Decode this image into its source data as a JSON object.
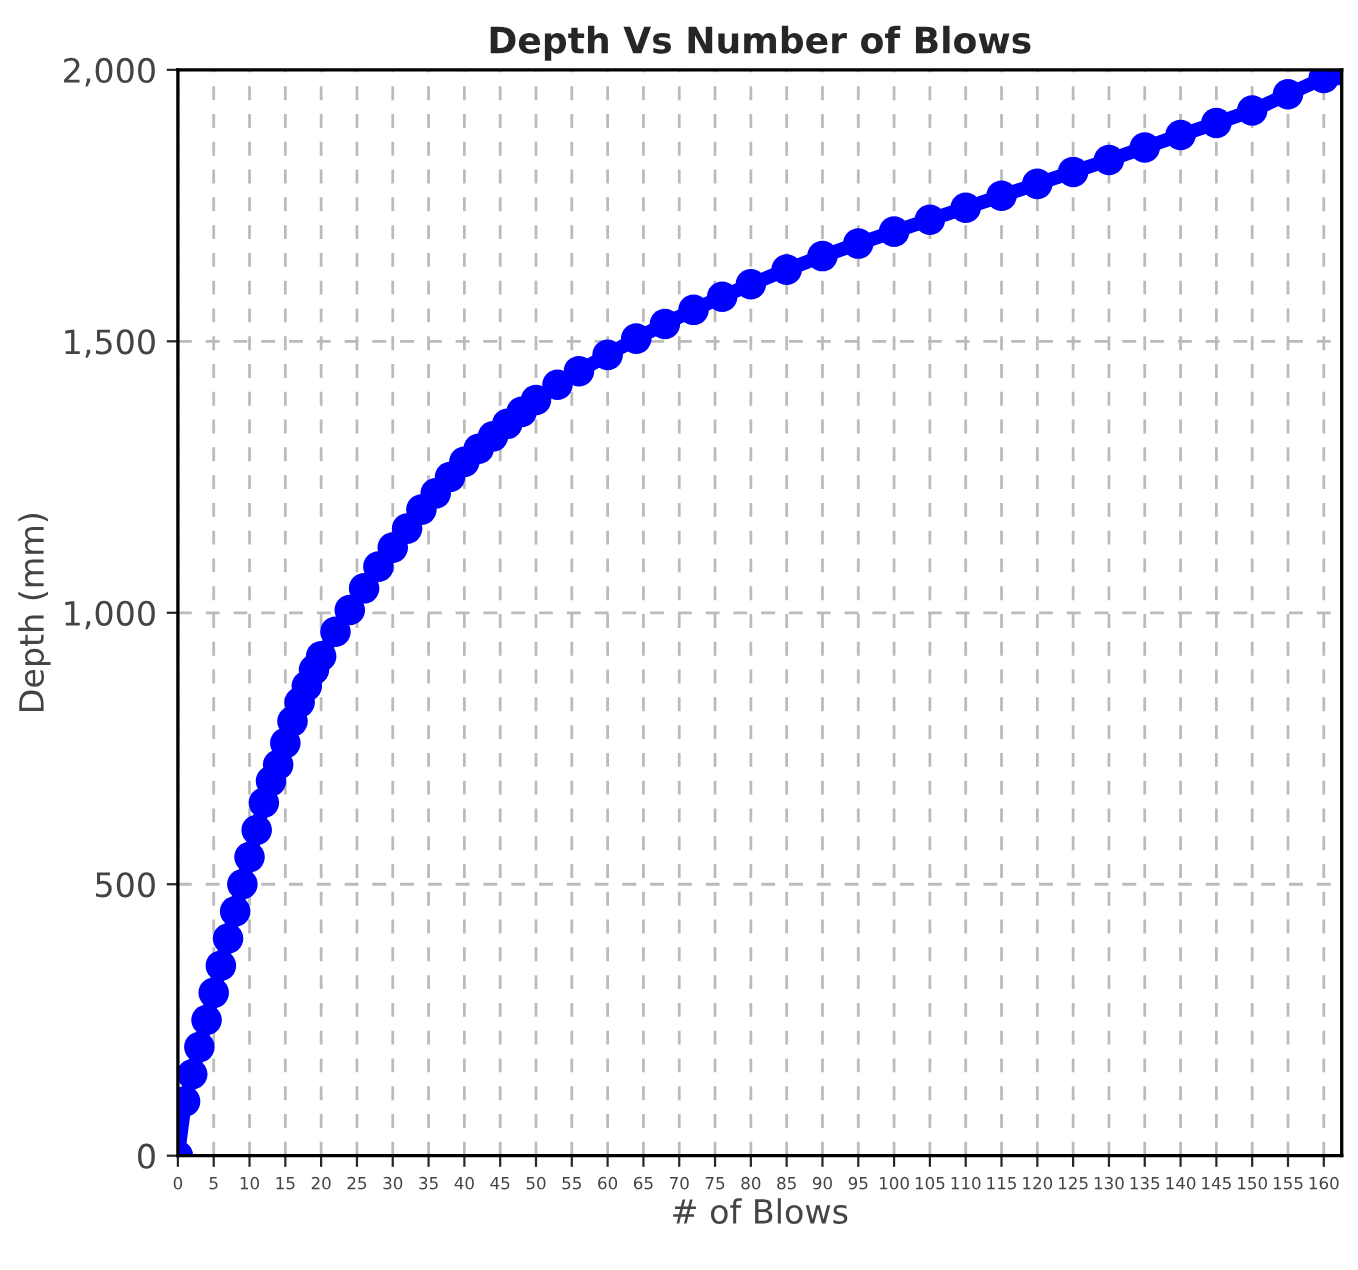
{
  "chart_data": {
    "type": "line",
    "title": "Depth Vs Number of Blows",
    "xlabel": "# of Blows",
    "ylabel": "Depth (mm)",
    "x": [
      0,
      1,
      2,
      3,
      4,
      5,
      6,
      7,
      8,
      9,
      10,
      11,
      12,
      13,
      14,
      15,
      16,
      17,
      18,
      19,
      20,
      22,
      24,
      26,
      28,
      30,
      32,
      34,
      36,
      38,
      40,
      42,
      44,
      46,
      48,
      50,
      53,
      56,
      60,
      64,
      68,
      72,
      76,
      80,
      85,
      90,
      95,
      100,
      105,
      110,
      115,
      120,
      125,
      130,
      135,
      140,
      145,
      150,
      155,
      160,
      162
    ],
    "series": [
      {
        "color": "#0000ff",
        "values": [
          0,
          100,
          150,
          200,
          250,
          300,
          350,
          400,
          450,
          500,
          550,
          600,
          650,
          690,
          720,
          760,
          800,
          835,
          865,
          895,
          920,
          965,
          1005,
          1045,
          1085,
          1120,
          1155,
          1190,
          1220,
          1250,
          1278,
          1302,
          1325,
          1348,
          1370,
          1392,
          1420,
          1445,
          1475,
          1505,
          1532,
          1558,
          1582,
          1605,
          1632,
          1657,
          1680,
          1702,
          1724,
          1746,
          1768,
          1790,
          1812,
          1834,
          1857,
          1880,
          1902,
          1925,
          1955,
          1985,
          2000
        ]
      }
    ],
    "xlim": [
      0,
      162.5
    ],
    "xticks": [
      0,
      5,
      10,
      15,
      20,
      25,
      30,
      35,
      40,
      45,
      50,
      55,
      60,
      65,
      70,
      75,
      80,
      85,
      90,
      95,
      100,
      105,
      110,
      115,
      120,
      125,
      130,
      135,
      140,
      145,
      150,
      155,
      160
    ],
    "ylim": [
      0,
      2000
    ],
    "yticks": [
      0,
      500,
      {
        "value": 1000,
        "label": "1,000"
      },
      {
        "value": 1500,
        "label": "1,500"
      },
      {
        "value": 2000,
        "label": "2,000"
      }
    ],
    "grid": true,
    "marker": "circle",
    "line_style": "solid"
  }
}
